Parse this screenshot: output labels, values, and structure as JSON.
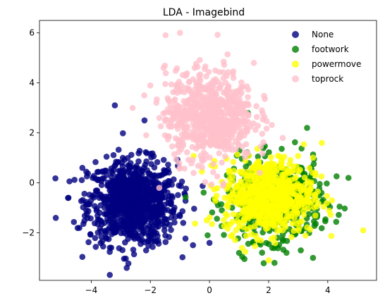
{
  "chart_data": {
    "type": "scatter",
    "title": "LDA - Imagebind",
    "xlabel": "",
    "ylabel": "",
    "xlim": [
      -5.75,
      5.65
    ],
    "ylim": [
      -3.9,
      6.5
    ],
    "xticks": [
      -4,
      -2,
      0,
      2,
      4
    ],
    "yticks": [
      -2,
      0,
      2,
      4,
      6
    ],
    "grid": false,
    "legend_position": "top-right",
    "series": [
      {
        "name": "None",
        "color": "#000080",
        "center": [
          -2.6,
          -0.8
        ],
        "spread": [
          0.75,
          0.85
        ],
        "count": 900,
        "outliers": [
          [
            -5.2,
            -1.4
          ],
          [
            -4.4,
            -1.8
          ],
          [
            -3.2,
            3.1
          ],
          [
            -2.8,
            -3.4
          ],
          [
            -2.2,
            2.5
          ],
          [
            0.0,
            -2.4
          ],
          [
            -4.3,
            0.6
          ]
        ]
      },
      {
        "name": "footwork",
        "color": "#008000",
        "center": [
          2.2,
          -0.7
        ],
        "spread": [
          0.8,
          0.8
        ],
        "count": 500,
        "outliers": [
          [
            4.7,
            0.2
          ],
          [
            3.3,
            2.2
          ],
          [
            2.2,
            -3.2
          ],
          [
            1.0,
            -2.8
          ],
          [
            3.5,
            -3.0
          ],
          [
            1.3,
            2.8
          ]
        ]
      },
      {
        "name": "powermove",
        "color": "#ffff00",
        "center": [
          2.0,
          -0.5
        ],
        "spread": [
          0.75,
          0.75
        ],
        "count": 700,
        "outliers": [
          [
            5.2,
            -1.9
          ],
          [
            2.0,
            -3.1
          ],
          [
            0.2,
            1.8
          ],
          [
            3.8,
            1.6
          ],
          [
            1.1,
            -2.6
          ]
        ]
      },
      {
        "name": "toprock",
        "color": "#ffc0cb",
        "center": [
          0.0,
          2.7
        ],
        "spread": [
          0.75,
          0.9
        ],
        "count": 700,
        "outliers": [
          [
            -1.0,
            6.0
          ],
          [
            -2.6,
            3.0
          ],
          [
            -2.0,
            3.9
          ],
          [
            1.5,
            4.8
          ],
          [
            -1.7,
            -0.2
          ]
        ]
      }
    ]
  }
}
